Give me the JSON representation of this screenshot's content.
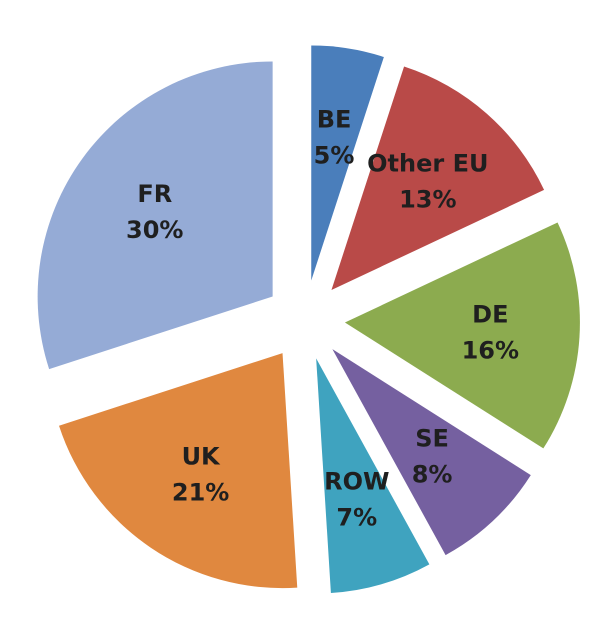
{
  "chart_data": {
    "type": "pie",
    "categories": [
      "BE",
      "Other EU",
      "DE",
      "SE",
      "ROW",
      "UK",
      "FR"
    ],
    "values": [
      5,
      13,
      16,
      8,
      7,
      21,
      30
    ],
    "value_labels": [
      "5%",
      "13%",
      "16%",
      "8%",
      "7%",
      "21%",
      "30%"
    ],
    "colors": [
      "#4a7ebb",
      "#b94a48",
      "#8cab4f",
      "#7560a0",
      "#3fa3bf",
      "#e0883f",
      "#95abd6"
    ]
  }
}
